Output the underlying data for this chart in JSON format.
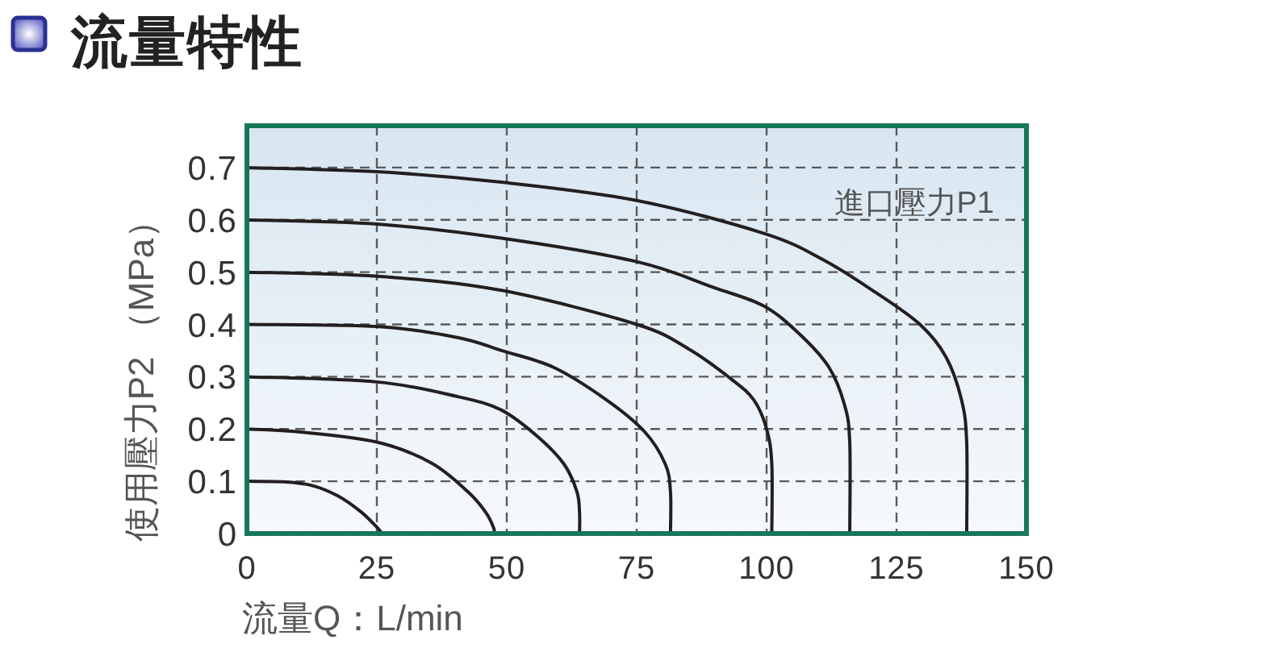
{
  "chart_data": {
    "type": "line",
    "title": "流量特性",
    "xlabel": "流量Q：L/min",
    "ylabel": "使用壓力P2 （MPa）",
    "annotations": [
      "進口壓力P1"
    ],
    "series": [
      {
        "color": "#231f20",
        "x": [
          0,
          7,
          12.5,
          17.5,
          22,
          25,
          26
        ],
        "values": [
          0.1,
          0.099,
          0.092,
          0.072,
          0.041,
          0.012,
          0
        ]
      },
      {
        "color": "#231f20",
        "x": [
          0,
          9.5,
          25,
          35.5,
          42.5,
          46,
          47.5,
          47.5
        ],
        "values": [
          0.2,
          0.195,
          0.175,
          0.135,
          0.08,
          0.04,
          0.01,
          0
        ]
      },
      {
        "color": "#231f20",
        "x": [
          0,
          25,
          40.5,
          49,
          56,
          61,
          63.5,
          64,
          64
        ],
        "values": [
          0.3,
          0.29,
          0.262,
          0.236,
          0.185,
          0.133,
          0.08,
          0.04,
          0
        ]
      },
      {
        "color": "#231f20",
        "x": [
          0,
          25,
          40.5,
          49,
          59,
          69,
          76.5,
          80.5,
          81.5,
          81.5
        ],
        "values": [
          0.4,
          0.396,
          0.375,
          0.35,
          0.318,
          0.257,
          0.195,
          0.133,
          0.08,
          0
        ]
      },
      {
        "color": "#231f20",
        "x": [
          0,
          25,
          49,
          75,
          85,
          93,
          97.5,
          100,
          101,
          101
        ],
        "values": [
          0.5,
          0.492,
          0.465,
          0.4,
          0.353,
          0.297,
          0.256,
          0.2,
          0.133,
          0
        ]
      },
      {
        "color": "#231f20",
        "x": [
          0,
          25,
          49,
          75,
          90,
          99.5,
          106.5,
          112,
          115,
          116,
          116
        ],
        "values": [
          0.6,
          0.592,
          0.565,
          0.52,
          0.47,
          0.435,
          0.38,
          0.318,
          0.246,
          0.174,
          0
        ]
      },
      {
        "color": "#231f20",
        "x": [
          0,
          25,
          49,
          75,
          99.5,
          111,
          121,
          129.5,
          134.5,
          137.5,
          138.5,
          138.5
        ],
        "values": [
          0.7,
          0.692,
          0.672,
          0.637,
          0.574,
          0.523,
          0.461,
          0.4,
          0.338,
          0.256,
          0.174,
          0
        ]
      }
    ],
    "xlim": [
      0,
      150
    ],
    "ylim": [
      0,
      0.78
    ],
    "xticks": [
      0,
      25,
      50,
      75,
      100,
      125,
      150
    ],
    "yticks": [
      0,
      0.1,
      0.2,
      0.3,
      0.4,
      0.5,
      0.6,
      0.7
    ],
    "grid": true
  }
}
